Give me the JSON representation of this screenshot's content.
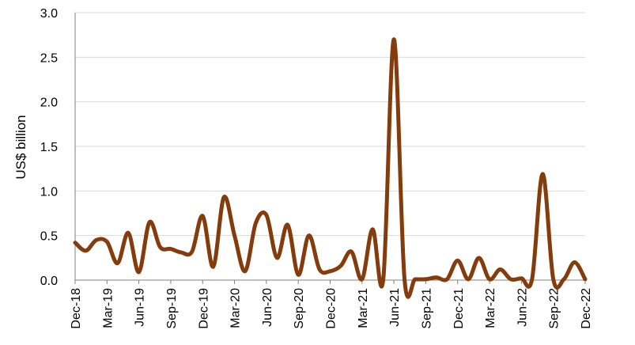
{
  "chart_data": {
    "type": "line",
    "title": "",
    "xlabel": "",
    "ylabel": "US$ billion",
    "ylim": [
      0,
      3.0
    ],
    "yticks": [
      "0.0",
      "0.5",
      "1.0",
      "1.5",
      "2.0",
      "2.5",
      "3.0"
    ],
    "xtick_labels": [
      "Dec-18",
      "Mar-19",
      "Jun-19",
      "Sep-19",
      "Dec-19",
      "Mar-20",
      "Jun-20",
      "Sep-20",
      "Dec-20",
      "Mar-21",
      "Jun-21",
      "Sep-21",
      "Dec-21",
      "Mar-22",
      "Jun-22",
      "Sep-22",
      "Dec-22"
    ],
    "grid": true,
    "legend": "none",
    "x": [
      "Dec-18",
      "Jan-19",
      "Feb-19",
      "Mar-19",
      "Apr-19",
      "May-19",
      "Jun-19",
      "Jul-19",
      "Aug-19",
      "Sep-19",
      "Oct-19",
      "Nov-19",
      "Dec-19",
      "Jan-20",
      "Feb-20",
      "Mar-20",
      "Apr-20",
      "May-20",
      "Jun-20",
      "Jul-20",
      "Aug-20",
      "Sep-20",
      "Oct-20",
      "Nov-20",
      "Dec-20",
      "Jan-21",
      "Feb-21",
      "Mar-21",
      "Apr-21",
      "May-21",
      "Jun-21",
      "Jul-21",
      "Aug-21",
      "Sep-21",
      "Oct-21",
      "Nov-21",
      "Dec-21",
      "Jan-22",
      "Feb-22",
      "Mar-22",
      "Apr-22",
      "May-22",
      "Jun-22",
      "Jul-22",
      "Aug-22",
      "Sep-22",
      "Oct-22",
      "Nov-22",
      "Dec-22"
    ],
    "series": [
      {
        "name": "",
        "color": "#843c0c",
        "values": [
          0.42,
          0.33,
          0.45,
          0.43,
          0.19,
          0.53,
          0.09,
          0.65,
          0.37,
          0.35,
          0.31,
          0.32,
          0.72,
          0.15,
          0.93,
          0.5,
          0.1,
          0.64,
          0.73,
          0.25,
          0.62,
          0.06,
          0.5,
          0.12,
          0.1,
          0.16,
          0.32,
          0.01,
          0.57,
          0.01,
          2.7,
          0.01,
          0.01,
          0.01,
          0.03,
          0.01,
          0.22,
          0.01,
          0.25,
          0.01,
          0.12,
          0.01,
          0.02,
          0.01,
          1.19,
          0.01,
          0.01,
          0.2,
          0.01
        ]
      }
    ]
  }
}
